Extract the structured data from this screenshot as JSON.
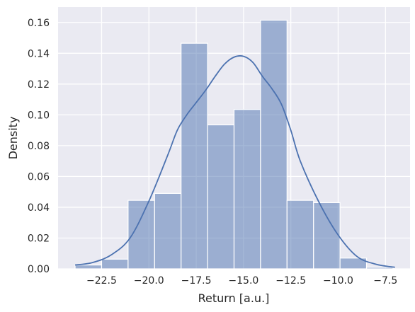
{
  "chart_data": {
    "type": "histogram",
    "title": "",
    "xlabel": "Return [a.u.]",
    "ylabel": "Density",
    "xlim": [
      -24.8,
      -6.2
    ],
    "ylim": [
      0,
      0.17
    ],
    "grid": true,
    "legend": "none",
    "x_ticks": [
      {
        "value": -22.5,
        "label": "−22.5"
      },
      {
        "value": -20.0,
        "label": "−20.0"
      },
      {
        "value": -17.5,
        "label": "−17.5"
      },
      {
        "value": -15.0,
        "label": "−15.0"
      },
      {
        "value": -12.5,
        "label": "−12.5"
      },
      {
        "value": -10.0,
        "label": "−10.0"
      },
      {
        "value": -7.5,
        "label": "−7.5"
      }
    ],
    "y_ticks": [
      {
        "value": 0.0,
        "label": "0.00"
      },
      {
        "value": 0.02,
        "label": "0.02"
      },
      {
        "value": 0.04,
        "label": "0.04"
      },
      {
        "value": 0.06,
        "label": "0.06"
      },
      {
        "value": 0.08,
        "label": "0.08"
      },
      {
        "value": 0.1,
        "label": "0.10"
      },
      {
        "value": 0.12,
        "label": "0.12"
      },
      {
        "value": 0.14,
        "label": "0.14"
      },
      {
        "value": 0.16,
        "label": "0.16"
      }
    ],
    "bins": [
      {
        "x0": -23.9,
        "x1": -22.5,
        "density": 0.0025
      },
      {
        "x0": -22.5,
        "x1": -21.1,
        "density": 0.0063
      },
      {
        "x0": -21.1,
        "x1": -19.7,
        "density": 0.0445
      },
      {
        "x0": -19.7,
        "x1": -18.3,
        "density": 0.049
      },
      {
        "x0": -18.3,
        "x1": -16.9,
        "density": 0.1465
      },
      {
        "x0": -16.9,
        "x1": -15.5,
        "density": 0.0935
      },
      {
        "x0": -15.5,
        "x1": -14.1,
        "density": 0.1035
      },
      {
        "x0": -14.1,
        "x1": -12.7,
        "density": 0.1615
      },
      {
        "x0": -12.7,
        "x1": -11.3,
        "density": 0.0445
      },
      {
        "x0": -11.3,
        "x1": -9.9,
        "density": 0.043
      },
      {
        "x0": -9.9,
        "x1": -8.5,
        "density": 0.007
      },
      {
        "x0": -8.5,
        "x1": -7.1,
        "density": 0.001
      }
    ],
    "kde": [
      {
        "x": -23.9,
        "y": 0.0025
      },
      {
        "x": -23.0,
        "y": 0.004
      },
      {
        "x": -22.0,
        "y": 0.009
      },
      {
        "x": -21.0,
        "y": 0.02
      },
      {
        "x": -20.0,
        "y": 0.044
      },
      {
        "x": -19.0,
        "y": 0.074
      },
      {
        "x": -18.5,
        "y": 0.09
      },
      {
        "x": -18.0,
        "y": 0.1
      },
      {
        "x": -17.5,
        "y": 0.108
      },
      {
        "x": -17.0,
        "y": 0.116
      },
      {
        "x": -16.5,
        "y": 0.125
      },
      {
        "x": -16.0,
        "y": 0.133
      },
      {
        "x": -15.5,
        "y": 0.1375
      },
      {
        "x": -15.0,
        "y": 0.138
      },
      {
        "x": -14.5,
        "y": 0.134
      },
      {
        "x": -14.0,
        "y": 0.125
      },
      {
        "x": -13.5,
        "y": 0.117
      },
      {
        "x": -13.0,
        "y": 0.107
      },
      {
        "x": -12.5,
        "y": 0.09
      },
      {
        "x": -12.0,
        "y": 0.07
      },
      {
        "x": -11.0,
        "y": 0.043
      },
      {
        "x": -10.0,
        "y": 0.022
      },
      {
        "x": -9.0,
        "y": 0.008
      },
      {
        "x": -8.0,
        "y": 0.003
      },
      {
        "x": -7.0,
        "y": 0.001
      }
    ],
    "colors": {
      "plot_background": "#eaeaf2",
      "grid": "#ffffff",
      "bar_fill": "#4c72b0",
      "bar_opacity": 0.5,
      "bar_edge": "#ffffff",
      "kde_line": "#4c72b0"
    }
  }
}
